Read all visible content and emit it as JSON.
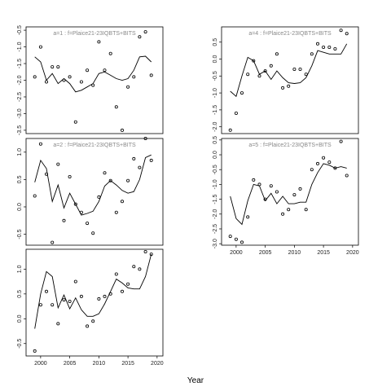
{
  "figure": {
    "xlabel": "Year"
  },
  "chart_data": [
    {
      "type": "scatter",
      "title": "a=1 : f=Plaice21-23IQBTS+BITS",
      "xlim": [
        1997.5,
        2021
      ],
      "ylim": [
        -3.6,
        -0.4
      ],
      "x_ticks": [],
      "y_ticks": [
        -3.5,
        -3.0,
        -2.5,
        -2.0,
        -1.5,
        -1.0,
        -0.5
      ],
      "series": [
        {
          "kind": "line",
          "x": [
            1999,
            2000,
            2001,
            2002,
            2003,
            2004,
            2005,
            2006,
            2007,
            2008,
            2009,
            2010,
            2011,
            2012,
            2013,
            2014,
            2015,
            2016,
            2017,
            2018,
            2019
          ],
          "values": [
            -1.3,
            -1.45,
            -2.0,
            -1.8,
            -2.1,
            -1.95,
            -2.1,
            -2.35,
            -2.3,
            -2.2,
            -2.1,
            -1.8,
            -1.75,
            -1.85,
            -1.95,
            -2.0,
            -1.95,
            -1.7,
            -1.3,
            -1.28,
            -1.45
          ]
        },
        {
          "kind": "points",
          "x": [
            1999,
            2000,
            2001,
            2002,
            2003,
            2004,
            2005,
            2006,
            2007,
            2008,
            2009,
            2010,
            2011,
            2012,
            2013,
            2014,
            2015,
            2016,
            2017,
            2018,
            2019
          ],
          "values": [
            -1.9,
            -1.0,
            -2.05,
            -1.6,
            -1.6,
            -2.0,
            -1.9,
            -3.25,
            -2.05,
            -1.7,
            -2.15,
            -0.85,
            -1.7,
            -1.2,
            -2.8,
            -3.5,
            -2.2,
            -1.9,
            -0.7,
            -0.55,
            -1.85
          ]
        }
      ]
    },
    {
      "type": "scatter",
      "title": "a=2 : f=Plaice21-23IQBTS+BITS",
      "xlim": [
        1997.5,
        2021
      ],
      "ylim": [
        -0.7,
        1.25
      ],
      "x_ticks": [],
      "y_ticks": [
        -0.5,
        0.0,
        0.5,
        1.0
      ],
      "series": [
        {
          "kind": "line",
          "x": [
            1999,
            2000,
            2001,
            2002,
            2003,
            2004,
            2005,
            2006,
            2007,
            2008,
            2009,
            2010,
            2011,
            2012,
            2013,
            2014,
            2015,
            2016,
            2017,
            2018,
            2019
          ],
          "values": [
            0.45,
            0.85,
            0.7,
            0.1,
            0.4,
            -0.02,
            0.25,
            0.05,
            -0.15,
            -0.12,
            -0.08,
            0.1,
            0.38,
            0.48,
            0.4,
            0.3,
            0.25,
            0.28,
            0.5,
            0.9,
            0.95
          ]
        },
        {
          "kind": "points",
          "x": [
            1999,
            2000,
            2001,
            2002,
            2003,
            2004,
            2005,
            2006,
            2007,
            2008,
            2009,
            2010,
            2011,
            2012,
            2013,
            2014,
            2015,
            2016,
            2017,
            2018,
            2019
          ],
          "values": [
            0.2,
            1.15,
            0.6,
            -0.65,
            0.78,
            -0.25,
            0.55,
            0.05,
            -0.1,
            -0.3,
            -0.48,
            0.18,
            0.62,
            0.48,
            -0.1,
            0.1,
            0.48,
            0.88,
            0.72,
            1.25,
            0.85
          ]
        }
      ]
    },
    {
      "type": "scatter",
      "title": "",
      "xlim": [
        1997.5,
        2021
      ],
      "ylim": [
        -0.75,
        1.4
      ],
      "x_ticks": [
        2000,
        2005,
        2010,
        2015,
        2020
      ],
      "y_ticks": [
        -0.5,
        0.0,
        0.5,
        1.0
      ],
      "series": [
        {
          "kind": "line",
          "x": [
            1999,
            2000,
            2001,
            2002,
            2003,
            2004,
            2005,
            2006,
            2007,
            2008,
            2009,
            2010,
            2011,
            2012,
            2013,
            2014,
            2015,
            2016,
            2017,
            2018,
            2019
          ],
          "values": [
            -0.2,
            0.5,
            0.95,
            0.85,
            0.22,
            0.48,
            0.2,
            0.42,
            0.18,
            0.05,
            0.05,
            0.1,
            0.3,
            0.55,
            0.8,
            0.72,
            0.62,
            0.6,
            0.6,
            0.85,
            1.3
          ]
        },
        {
          "kind": "points",
          "x": [
            1999,
            2000,
            2001,
            2002,
            2003,
            2004,
            2005,
            2006,
            2007,
            2008,
            2009,
            2010,
            2011,
            2012,
            2013,
            2014,
            2015,
            2016,
            2017,
            2018,
            2019
          ],
          "values": [
            -0.65,
            0.28,
            0.55,
            0.28,
            -0.1,
            0.38,
            0.35,
            0.75,
            0.45,
            -0.15,
            -0.05,
            0.4,
            0.45,
            0.5,
            0.9,
            0.55,
            0.7,
            1.05,
            1.0,
            1.35,
            1.3
          ]
        }
      ]
    },
    {
      "type": "scatter",
      "title": "a=4 : f=Plaice21-23IQBTS+BITS",
      "xlim": [
        1997.5,
        2021
      ],
      "ylim": [
        -2.2,
        0.95
      ],
      "x_ticks": [],
      "y_ticks": [
        -2.0,
        -1.5,
        -1.0,
        -0.5,
        0.0,
        0.5
      ],
      "series": [
        {
          "kind": "line",
          "x": [
            1999,
            2000,
            2001,
            2002,
            2003,
            2004,
            2005,
            2006,
            2007,
            2008,
            2009,
            2010,
            2011,
            2012,
            2013,
            2014,
            2015,
            2016,
            2017,
            2018,
            2019
          ],
          "values": [
            -0.95,
            -1.1,
            -0.5,
            0.05,
            -0.05,
            -0.45,
            -0.35,
            -0.6,
            -0.35,
            -0.55,
            -0.7,
            -0.72,
            -0.7,
            -0.55,
            -0.2,
            0.25,
            0.2,
            0.15,
            0.15,
            0.15,
            0.45
          ]
        },
        {
          "kind": "points",
          "x": [
            1999,
            2000,
            2001,
            2002,
            2003,
            2004,
            2005,
            2006,
            2007,
            2008,
            2009,
            2010,
            2011,
            2012,
            2013,
            2014,
            2015,
            2016,
            2017,
            2018,
            2019
          ],
          "values": [
            -2.1,
            -1.6,
            -1.0,
            -0.45,
            -0.05,
            -0.5,
            -0.35,
            -0.2,
            0.15,
            -0.85,
            -0.8,
            -0.3,
            -0.3,
            -0.45,
            0.15,
            0.45,
            0.35,
            0.35,
            0.3,
            0.85,
            0.75
          ]
        }
      ]
    },
    {
      "type": "scatter",
      "title": "a=5 : f=Plaice21-23IQBTS+BITS",
      "xlim": [
        1997.5,
        2021
      ],
      "ylim": [
        -3.05,
        0.55
      ],
      "x_ticks": [
        2000,
        2005,
        2010,
        2015,
        2020
      ],
      "y_ticks": [
        -3.0,
        -2.5,
        -2.0,
        -1.5,
        -1.0,
        -0.5,
        0.0,
        0.5
      ],
      "series": [
        {
          "kind": "line",
          "x": [
            1999,
            2000,
            2001,
            2002,
            2003,
            2004,
            2005,
            2006,
            2007,
            2008,
            2009,
            2010,
            2011,
            2012,
            2013,
            2014,
            2015,
            2016,
            2017,
            2018,
            2019
          ],
          "values": [
            -1.4,
            -2.15,
            -2.35,
            -1.55,
            -1.0,
            -1.05,
            -1.55,
            -1.3,
            -1.65,
            -1.4,
            -1.65,
            -1.65,
            -1.6,
            -1.6,
            -1.0,
            -0.6,
            -0.3,
            -0.35,
            -0.45,
            -0.4,
            -0.45
          ]
        },
        {
          "kind": "points",
          "x": [
            1999,
            2000,
            2001,
            2002,
            2003,
            2004,
            2005,
            2006,
            2007,
            2008,
            2009,
            2010,
            2011,
            2012,
            2013,
            2014,
            2015,
            2016,
            2017,
            2018,
            2019
          ],
          "values": [
            -2.75,
            -2.85,
            -2.95,
            -2.1,
            -0.85,
            -1.0,
            -1.5,
            -1.05,
            -1.25,
            -2.0,
            -1.85,
            -1.35,
            -1.15,
            -1.85,
            -0.5,
            -0.3,
            -0.1,
            -0.25,
            -0.45,
            0.45,
            -0.7
          ]
        }
      ]
    }
  ]
}
